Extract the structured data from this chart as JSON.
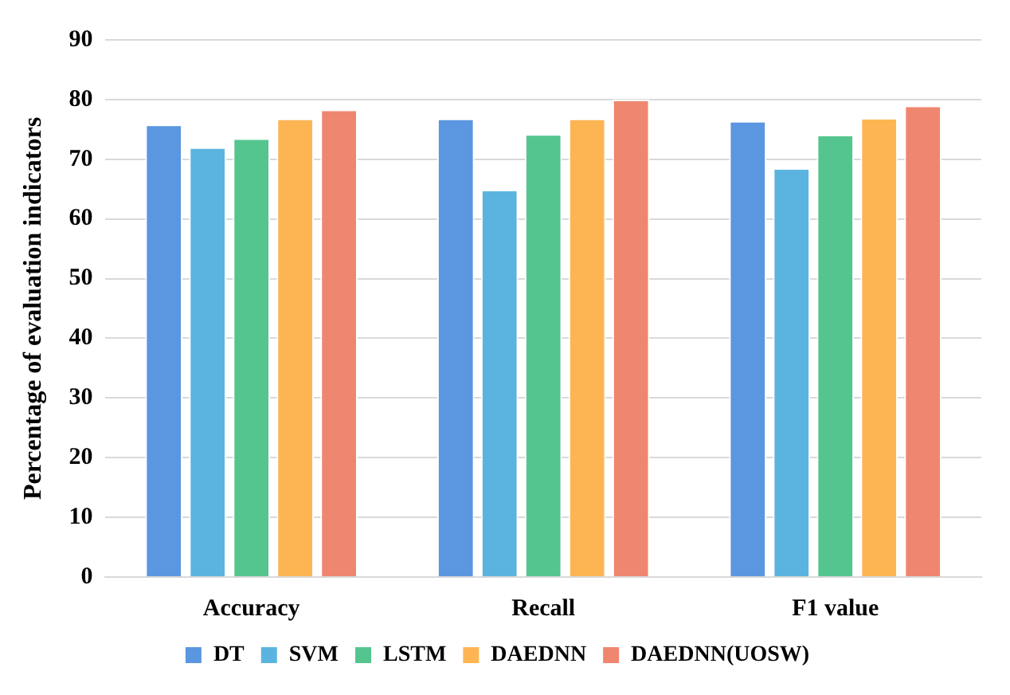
{
  "chart_data": {
    "type": "bar",
    "ylabel": "Percentage of evaluation indicators",
    "categories": [
      "Accuracy",
      "Recall",
      "F1 value"
    ],
    "series": [
      {
        "name": "DT",
        "color": "#5b96e0",
        "values": [
          75.8,
          76.8,
          76.4
        ]
      },
      {
        "name": "SVM",
        "color": "#5bb4df",
        "values": [
          72.0,
          64.9,
          68.5
        ]
      },
      {
        "name": "LSTM",
        "color": "#55c590",
        "values": [
          73.5,
          74.2,
          74.1
        ]
      },
      {
        "name": "DAEDNN",
        "color": "#fdb553",
        "values": [
          76.8,
          76.8,
          76.9
        ]
      },
      {
        "name": "DAEDNN(UOSW)",
        "color": "#ef866f",
        "values": [
          78.3,
          80,
          79
        ]
      }
    ],
    "ylim": [
      0,
      90
    ],
    "yticks": [
      0,
      10,
      20,
      30,
      40,
      50,
      60,
      70,
      80,
      90
    ],
    "grid": "y",
    "legend": "bottom"
  }
}
